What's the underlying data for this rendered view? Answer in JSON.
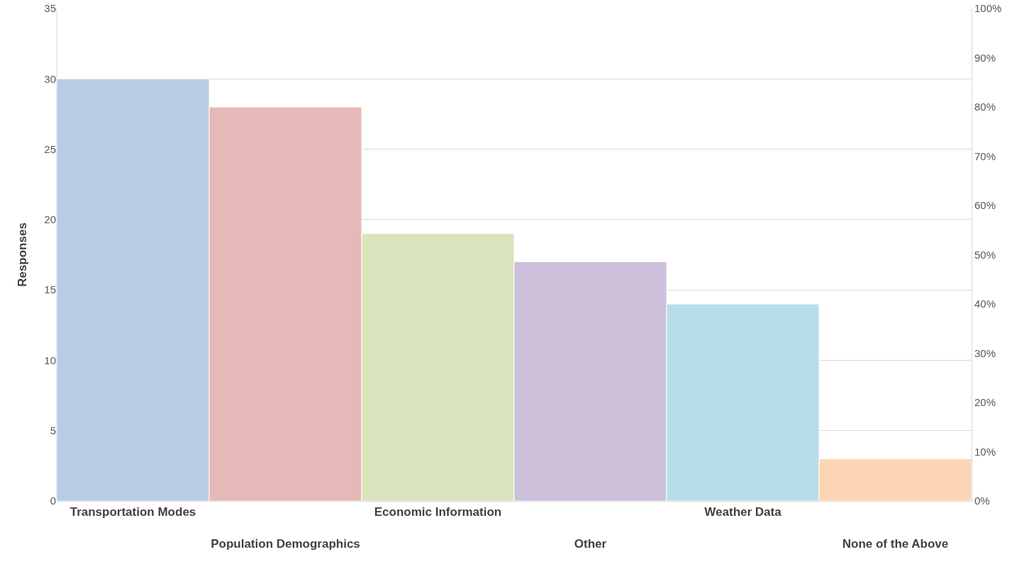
{
  "chart_data": {
    "type": "bar",
    "ylabel": "Responses",
    "categories": [
      "Transportation Modes",
      "Population Demographics",
      "Economic Information",
      "Other",
      "Weather Data",
      "None of the Above"
    ],
    "values": [
      30,
      28,
      19,
      17,
      14,
      3
    ],
    "colors": [
      "#b8cce4",
      "#e6b8b7",
      "#d8e4bc",
      "#ccc0da",
      "#b7dee8",
      "#fcd5b4"
    ],
    "ylim": [
      0,
      35
    ],
    "yticks": [
      0,
      5,
      10,
      15,
      20,
      25,
      30,
      35
    ],
    "y2lim": [
      0,
      100
    ],
    "y2ticks": [
      {
        "value": 0,
        "label": "0%"
      },
      {
        "value": 10,
        "label": "10%"
      },
      {
        "value": 20,
        "label": "20%"
      },
      {
        "value": 30,
        "label": "30%"
      },
      {
        "value": 40,
        "label": "40%"
      },
      {
        "value": 50,
        "label": "50%"
      },
      {
        "value": 60,
        "label": "60%"
      },
      {
        "value": 70,
        "label": "70%"
      },
      {
        "value": 80,
        "label": "80%"
      },
      {
        "value": 90,
        "label": "90%"
      },
      {
        "value": 100,
        "label": "100%"
      }
    ],
    "grid": "y"
  }
}
